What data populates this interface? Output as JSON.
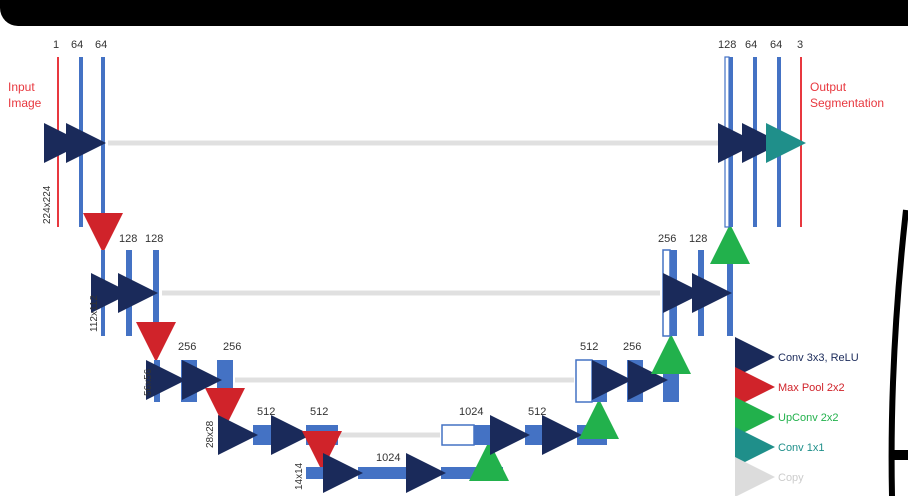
{
  "input_label": [
    "Input",
    "Image"
  ],
  "output_label": [
    "Output",
    "Segmentation"
  ],
  "level1": {
    "res": "224x224",
    "left_ch": [
      "1",
      "64",
      "64"
    ],
    "right_ch": [
      "128",
      "64",
      "64",
      "3"
    ]
  },
  "level2": {
    "res": "112x112",
    "left_ch": [
      "128",
      "128"
    ],
    "right_ch": [
      "256",
      "128"
    ]
  },
  "level3": {
    "res": "56x56",
    "left_ch": [
      "256",
      "256"
    ],
    "right_ch": [
      "512",
      "256"
    ]
  },
  "level4": {
    "res": "28x28",
    "left_ch": [
      "512",
      "512"
    ],
    "right_ch": [
      "1024",
      "512"
    ]
  },
  "level5": {
    "res": "14x14",
    "ch": "1024"
  },
  "legend": [
    {
      "label": "Conv 3x3, ReLU",
      "color": "#1a2a5a"
    },
    {
      "label": "Max Pool 2x2",
      "color": "#d0232a"
    },
    {
      "label": "UpConv 2x2",
      "color": "#22b14c"
    },
    {
      "label": "Conv 1x1",
      "color": "#1f8f8a"
    },
    {
      "label": "Copy",
      "color": "#dddddd"
    }
  ],
  "colors": {
    "block": "#4472c4",
    "text_red": "#e8383f"
  }
}
